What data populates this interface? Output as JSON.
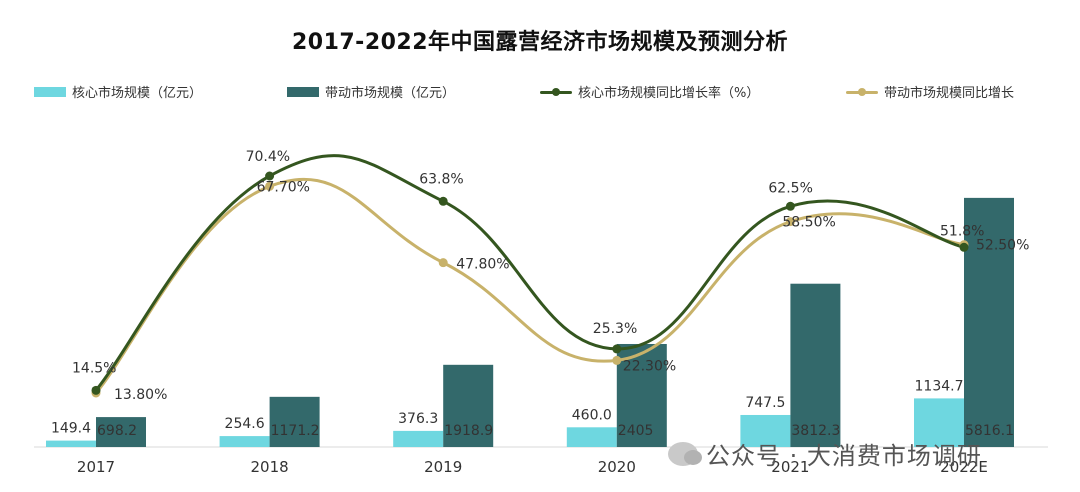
{
  "chart_data": {
    "type": "bar",
    "title": "2017-2022年中国露营经济市场规模及预测分析",
    "categories": [
      "2017",
      "2018",
      "2019",
      "2020",
      "2021",
      "2022E"
    ],
    "series": [
      {
        "name": "核心市场规模（亿元）",
        "kind": "bar",
        "color": "#6ed7e0",
        "values": [
          149.4,
          254.6,
          376.3,
          460.0,
          747.5,
          1134.7
        ],
        "labels": [
          "149.4",
          "254.6",
          "376.3",
          "460.0",
          "747.5",
          "1134.7"
        ]
      },
      {
        "name": "带动市场规模（亿元）",
        "kind": "bar",
        "color": "#33696b",
        "values": [
          698.2,
          1171.2,
          1918.9,
          2405,
          3812.3,
          5816.1
        ],
        "labels": [
          "698.2",
          "1171.2",
          "1918.9",
          "2405",
          "3812.3",
          "5816.1"
        ]
      },
      {
        "name": "核心市场规模同比增长率（%）",
        "kind": "line",
        "color": "#34561f",
        "values": [
          14.5,
          70.4,
          63.8,
          25.3,
          62.5,
          51.8
        ],
        "labels": [
          "14.5%",
          "70.4%",
          "63.8%",
          "25.3%",
          "62.5%",
          "51.8%"
        ]
      },
      {
        "name": "带动市场规模同比增长",
        "kind": "line",
        "color": "#c8b26a",
        "values": [
          13.8,
          67.7,
          47.8,
          22.3,
          58.5,
          52.5
        ],
        "labels": [
          "13.80%",
          "67.70%",
          "47.80%",
          "22.30%",
          "58.50%",
          "52.50%"
        ]
      }
    ],
    "grid": false,
    "legend": "top",
    "colors": {
      "axis": "#d9d9d9"
    }
  },
  "watermark": {
    "text": "公众号 · 大消费市场调研",
    "icon": "wechat-icon"
  }
}
